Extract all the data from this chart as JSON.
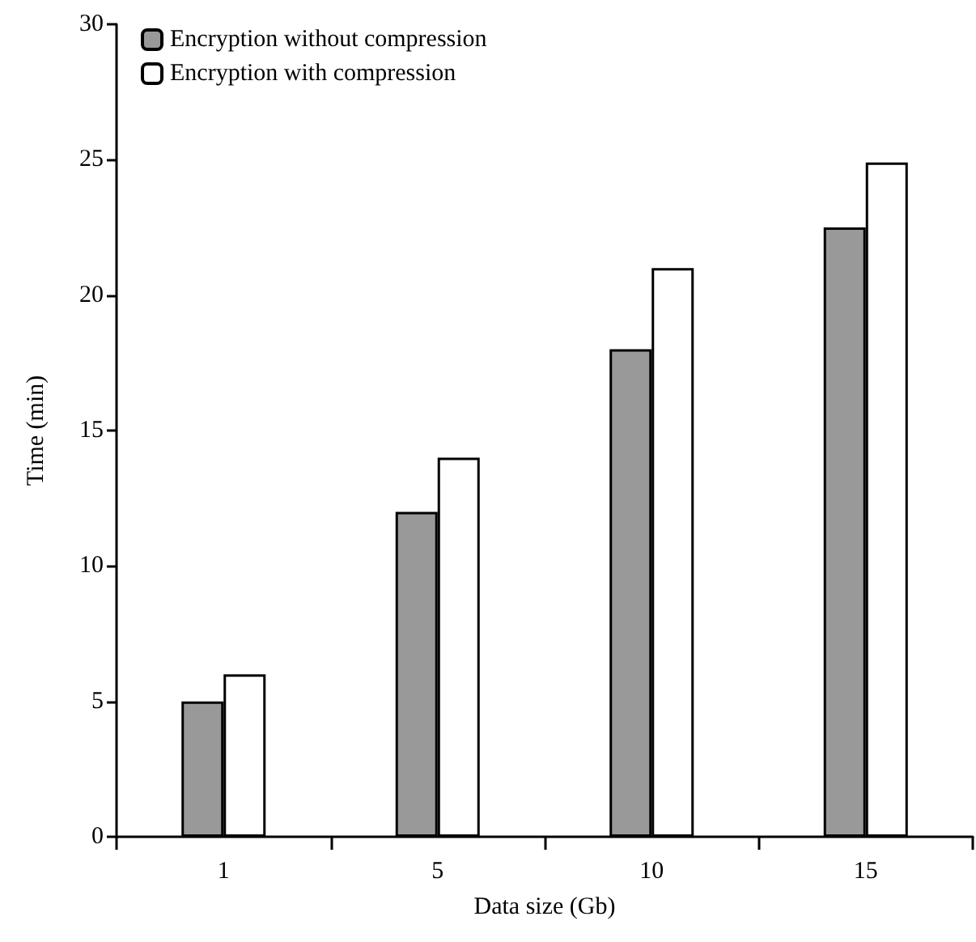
{
  "chart_data": {
    "type": "bar",
    "xlabel": "Data size (Gb)",
    "ylabel": "Time (min)",
    "categories": [
      "1",
      "5",
      "10",
      "15"
    ],
    "series": [
      {
        "name": "Encryption without compression",
        "color": "#999999",
        "values": [
          5,
          12,
          18,
          22.5
        ]
      },
      {
        "name": "Encryption with compression",
        "color": "#ffffff",
        "values": [
          6,
          14,
          21,
          24.9
        ]
      }
    ],
    "ylim": [
      0,
      30
    ],
    "yticks": [
      0,
      5,
      10,
      15,
      20,
      25,
      30
    ],
    "grid": false,
    "legend": "top left"
  }
}
